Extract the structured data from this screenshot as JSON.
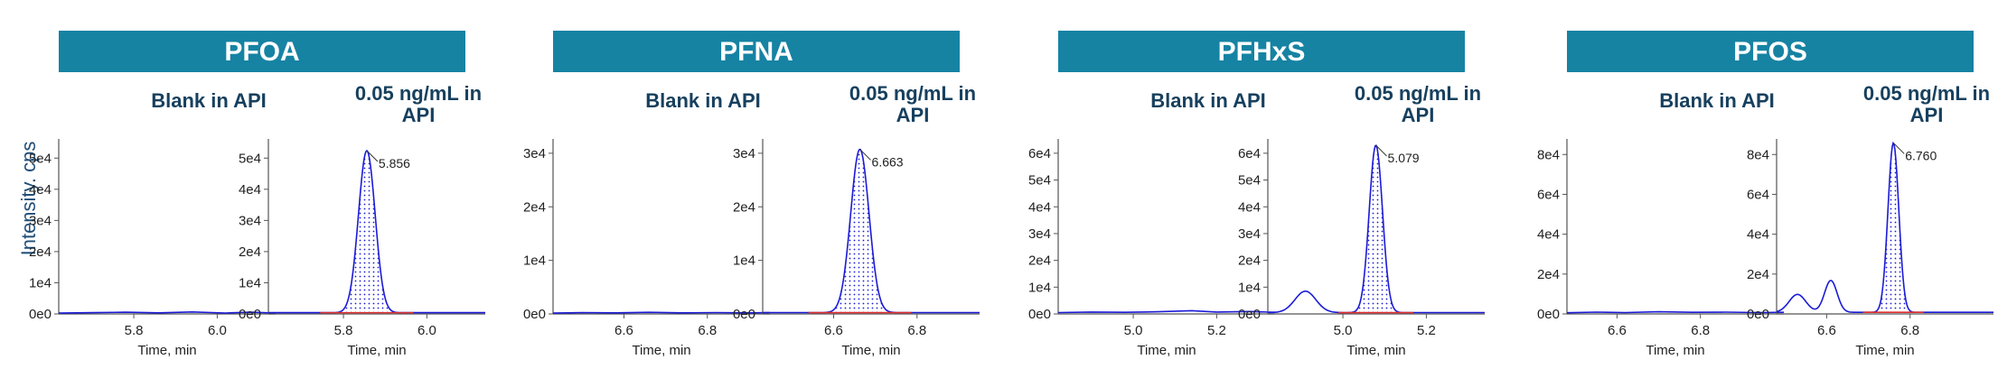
{
  "y_axis_label": "Intensity. cps",
  "colors": {
    "banner": "#1683a3",
    "trace": "#1b1bd6",
    "baseline": "#e03030",
    "axis": "#555555",
    "subtitle": "#17405e"
  },
  "chart_data": [
    {
      "compound": "PFOA",
      "type": "line",
      "ylim": [
        0,
        55000
      ],
      "yticks": [
        0,
        10000,
        20000,
        30000,
        40000,
        50000
      ],
      "ytick_labels": [
        "0e0",
        "1e4",
        "2e4",
        "3e4",
        "4e4",
        "5e4"
      ],
      "blank": {
        "title": "Blank in API",
        "xlabel": "Time, min",
        "xlim": [
          5.62,
          6.14
        ],
        "xticks": [
          5.8,
          6.0
        ],
        "xtick_labels": [
          "5.8",
          "6.0"
        ],
        "trace": [
          [
            5.62,
            250
          ],
          [
            5.7,
            400
          ],
          [
            5.78,
            550
          ],
          [
            5.86,
            350
          ],
          [
            5.94,
            650
          ],
          [
            6.02,
            300
          ],
          [
            6.08,
            550
          ],
          [
            6.14,
            300
          ]
        ]
      },
      "sample": {
        "title": "0.05 ng/mL in API",
        "xlabel": "Time, min",
        "xlim": [
          5.62,
          6.14
        ],
        "xticks": [
          5.8,
          6.0
        ],
        "xtick_labels": [
          "5.8",
          "6.0"
        ],
        "peak_label": "5.856",
        "peak_rt": 5.856,
        "peak_height": 52000,
        "peak_sigma": 0.02,
        "baseline_level": 400,
        "features": []
      }
    },
    {
      "compound": "PFNA",
      "type": "line",
      "ylim": [
        0,
        32000
      ],
      "yticks": [
        0,
        10000,
        20000,
        30000
      ],
      "ytick_labels": [
        "0e0",
        "1e4",
        "2e4",
        "3e4"
      ],
      "blank": {
        "title": "Blank in API",
        "xlabel": "Time, min",
        "xlim": [
          6.43,
          6.95
        ],
        "xticks": [
          6.6,
          6.8
        ],
        "xtick_labels": [
          "6.6",
          "6.8"
        ],
        "trace": [
          [
            6.43,
            150
          ],
          [
            6.5,
            250
          ],
          [
            6.58,
            200
          ],
          [
            6.66,
            300
          ],
          [
            6.74,
            200
          ],
          [
            6.82,
            250
          ],
          [
            6.9,
            200
          ],
          [
            6.95,
            250
          ]
        ]
      },
      "sample": {
        "title": "0.05 ng/mL in API",
        "xlabel": "Time, min",
        "xlim": [
          6.43,
          6.95
        ],
        "xticks": [
          6.6,
          6.8
        ],
        "xtick_labels": [
          "6.6",
          "6.8"
        ],
        "peak_label": "6.663",
        "peak_rt": 6.663,
        "peak_height": 30500,
        "peak_sigma": 0.022,
        "baseline_level": 250,
        "features": []
      }
    },
    {
      "compound": "PFHxS",
      "type": "line",
      "ylim": [
        0,
        64000
      ],
      "yticks": [
        0,
        10000,
        20000,
        30000,
        40000,
        50000,
        60000
      ],
      "ytick_labels": [
        "0e0",
        "1e4",
        "2e4",
        "3e4",
        "4e4",
        "5e4",
        "6e4"
      ],
      "blank": {
        "title": "Blank in API",
        "xlabel": "Time, min",
        "xlim": [
          4.82,
          5.34
        ],
        "xticks": [
          5.0,
          5.2
        ],
        "xtick_labels": [
          "5.0",
          "5.2"
        ],
        "trace": [
          [
            4.82,
            500
          ],
          [
            4.9,
            700
          ],
          [
            4.98,
            600
          ],
          [
            5.06,
            800
          ],
          [
            5.14,
            1200
          ],
          [
            5.2,
            700
          ],
          [
            5.28,
            900
          ],
          [
            5.34,
            600
          ]
        ]
      },
      "sample": {
        "title": "0.05 ng/mL in API",
        "xlabel": "Time, min",
        "xlim": [
          4.82,
          5.34
        ],
        "xticks": [
          5.0,
          5.2
        ],
        "xtick_labels": [
          "5.0",
          "5.2"
        ],
        "peak_label": "5.079",
        "peak_rt": 5.079,
        "peak_height": 62500,
        "peak_sigma": 0.016,
        "baseline_level": 500,
        "features": [
          [
            4.91,
            8000,
            0.025
          ]
        ]
      }
    },
    {
      "compound": "PFOS",
      "type": "line",
      "ylim": [
        0,
        86000
      ],
      "yticks": [
        0,
        20000,
        40000,
        60000,
        80000
      ],
      "ytick_labels": [
        "0e0",
        "2e4",
        "4e4",
        "6e4",
        "8e4"
      ],
      "blank": {
        "title": "Blank in API",
        "xlabel": "Time, min",
        "xlim": [
          6.48,
          7.0
        ],
        "xticks": [
          6.6,
          6.8
        ],
        "xtick_labels": [
          "6.6",
          "6.8"
        ],
        "trace": [
          [
            6.48,
            600
          ],
          [
            6.55,
            900
          ],
          [
            6.62,
            700
          ],
          [
            6.7,
            1100
          ],
          [
            6.78,
            800
          ],
          [
            6.86,
            900
          ],
          [
            6.94,
            700
          ],
          [
            7.0,
            800
          ]
        ]
      },
      "sample": {
        "title": "0.05 ng/mL in API",
        "xlabel": "Time, min",
        "xlim": [
          6.48,
          7.0
        ],
        "xticks": [
          6.6,
          6.8
        ],
        "xtick_labels": [
          "6.6",
          "6.8"
        ],
        "peak_label": "6.760",
        "peak_rt": 6.76,
        "peak_height": 85000,
        "peak_sigma": 0.013,
        "baseline_level": 800,
        "features": [
          [
            6.53,
            9000,
            0.02
          ],
          [
            6.61,
            16000,
            0.015
          ]
        ]
      }
    }
  ]
}
